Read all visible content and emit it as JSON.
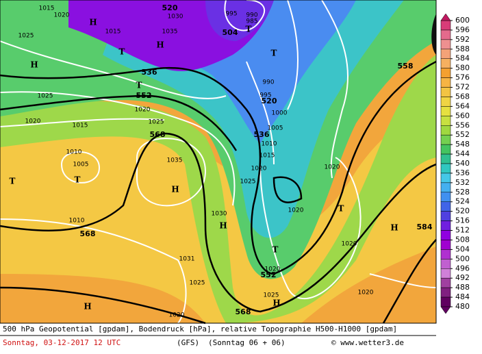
{
  "map": {
    "pressure_labels": [
      1015,
      1020,
      1025,
      1015,
      1035,
      1030,
      995,
      990,
      985,
      990,
      1025,
      1020,
      1015,
      1020,
      1025,
      1010,
      1005,
      1035,
      1020,
      1025,
      1020,
      1020,
      1010,
      1030,
      1020,
      1031,
      1025,
      1020,
      1025,
      1020,
      1020,
      1015,
      1010,
      1005,
      1000,
      995
    ],
    "height_labels": [
      520,
      504,
      536,
      552,
      568,
      520,
      536,
      558,
      568,
      552,
      568,
      584
    ],
    "centers": [
      "H",
      "H",
      "T",
      "H",
      "T",
      "T",
      "T",
      "T",
      "T",
      "H",
      "H",
      "T",
      "T",
      "H",
      "H",
      "H"
    ]
  },
  "colorbar": {
    "ticks": [
      600,
      596,
      592,
      588,
      584,
      580,
      576,
      572,
      568,
      564,
      560,
      556,
      552,
      548,
      544,
      540,
      536,
      532,
      528,
      524,
      520,
      516,
      512,
      508,
      504,
      500,
      496,
      492,
      488,
      484,
      480
    ],
    "colors": [
      "#c01860",
      "#d83c78",
      "#e46a8c",
      "#ee9090",
      "#f4a278",
      "#f6b060",
      "#f4a030",
      "#f6b444",
      "#f2c444",
      "#f0d444",
      "#e6e040",
      "#c8e040",
      "#a0d840",
      "#74d050",
      "#44c460",
      "#30c090",
      "#30c8c0",
      "#44c8e8",
      "#44b0f0",
      "#4090f0",
      "#4064e8",
      "#5040e0",
      "#7020e0",
      "#9000e0",
      "#a000d0",
      "#b030d0",
      "#c060d0",
      "#d080d8",
      "#a040a0",
      "#802080",
      "#600060"
    ]
  },
  "footer": {
    "description": "500 hPa Geopotential [gpdam], Bodendruck [hPa], relative Topographie H500-H1000 [gpdam]",
    "date": "Sonntag, 03-12-2017  12 UTC",
    "model": "(GFS)",
    "run": "(Sonntag 06 + 06)",
    "credit": "© www.wetter3.de"
  }
}
